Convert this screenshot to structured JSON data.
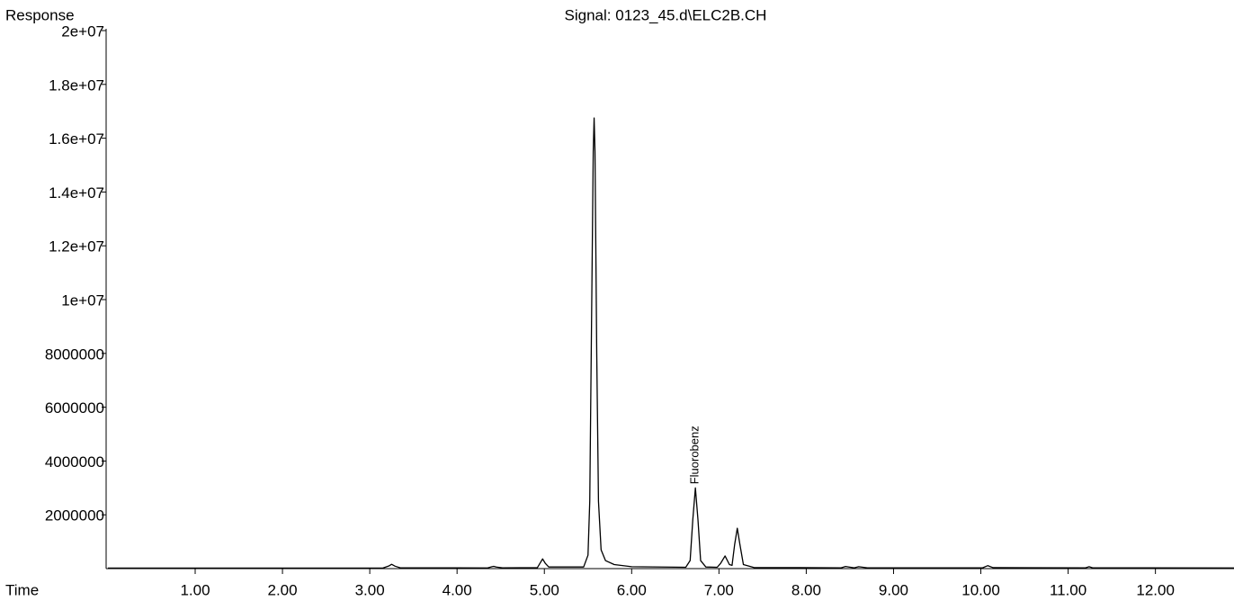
{
  "chart_data": {
    "type": "line",
    "title": "Signal: 0123_45.d\\ELC2B.CH",
    "ylabel": "Response",
    "xlabel": "Time",
    "annotations": [
      {
        "text": "Fluorobenz",
        "x": 6.73,
        "y": 3000000
      }
    ],
    "xlim": [
      -0.02,
      12.9
    ],
    "ylim": [
      0,
      20000000
    ],
    "xticks": [
      {
        "value": 1,
        "label": "1.00"
      },
      {
        "value": 2,
        "label": "2.00"
      },
      {
        "value": 3,
        "label": "3.00"
      },
      {
        "value": 4,
        "label": "4.00"
      },
      {
        "value": 5,
        "label": "5.00"
      },
      {
        "value": 6,
        "label": "6.00"
      },
      {
        "value": 7,
        "label": "7.00"
      },
      {
        "value": 8,
        "label": "8.00"
      },
      {
        "value": 9,
        "label": "9.00"
      },
      {
        "value": 10,
        "label": "10.00"
      },
      {
        "value": 11,
        "label": "11.00"
      },
      {
        "value": 12,
        "label": "12.00"
      }
    ],
    "yticks": [
      2000000,
      4000000,
      6000000,
      8000000,
      {
        "value": 10000000,
        "label": "1e+07"
      },
      {
        "value": 12000000,
        "label": "1.2e+07"
      },
      {
        "value": 14000000,
        "label": "1.4e+07"
      },
      {
        "value": 16000000,
        "label": "1.6e+07"
      },
      {
        "value": 18000000,
        "label": "1.8e+07"
      },
      {
        "value": 20000000,
        "label": "2e+07"
      }
    ],
    "color": "#000000",
    "x": [
      0.0,
      3.15,
      3.22,
      3.25,
      3.29,
      3.35,
      4.35,
      4.4,
      4.42,
      4.45,
      4.52,
      4.92,
      4.95,
      4.98,
      5.01,
      5.05,
      5.45,
      5.5,
      5.52,
      5.54,
      5.56,
      5.57,
      5.58,
      5.6,
      5.62,
      5.65,
      5.7,
      5.8,
      6.0,
      6.62,
      6.67,
      6.7,
      6.73,
      6.76,
      6.79,
      6.85,
      6.98,
      7.02,
      7.07,
      7.12,
      7.15,
      7.18,
      7.21,
      7.24,
      7.28,
      7.4,
      8.4,
      8.45,
      8.49,
      8.55,
      8.6,
      8.63,
      8.7,
      10.02,
      10.08,
      10.14,
      11.2,
      11.24,
      11.28,
      12.9
    ],
    "values": [
      20000,
      20000,
      100000,
      160000,
      90000,
      30000,
      25000,
      70000,
      85000,
      60000,
      30000,
      35000,
      200000,
      360000,
      200000,
      60000,
      60000,
      500000,
      2500000,
      9000000,
      15500000,
      16750000,
      15500000,
      8000000,
      2500000,
      700000,
      300000,
      150000,
      70000,
      50000,
      300000,
      1800000,
      3000000,
      1800000,
      300000,
      60000,
      50000,
      200000,
      470000,
      150000,
      120000,
      900000,
      1500000,
      900000,
      150000,
      40000,
      30000,
      80000,
      60000,
      30000,
      70000,
      60000,
      30000,
      30000,
      110000,
      35000,
      30000,
      70000,
      30000,
      25000
    ]
  }
}
